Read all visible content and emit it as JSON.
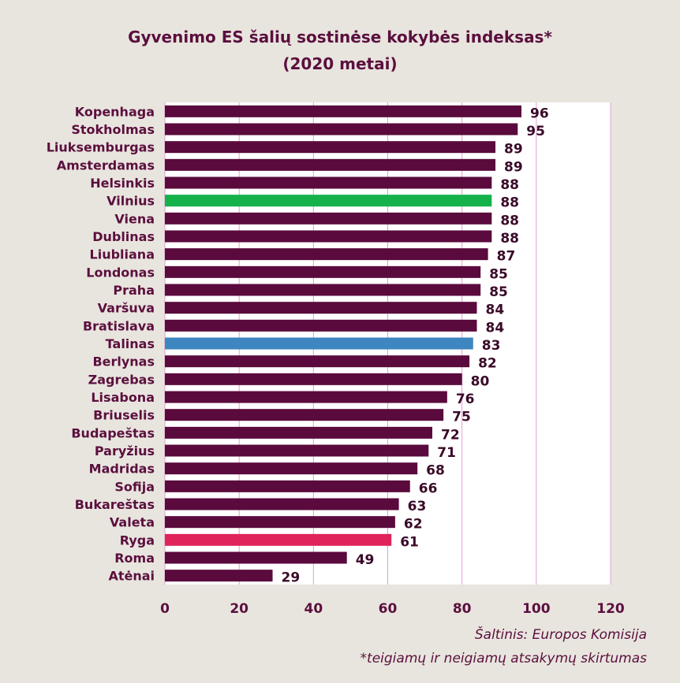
{
  "chart_data": {
    "type": "bar",
    "orientation": "horizontal",
    "title": "Gyvenimo ES šalių sostinėse kokybės indeksas*",
    "subtitle": "(2020 metai)",
    "categories": [
      "Kopenhaga",
      "Stokholmas",
      "Liuksemburgas",
      "Amsterdamas",
      "Helsinkis",
      "Vilnius",
      "Viena",
      "Dublinas",
      "Liubliana",
      "Londonas",
      "Praha",
      "Varšuva",
      "Bratislava",
      "Talinas",
      "Berlynas",
      "Zagrebas",
      "Lisabona",
      "Briuselis",
      "Budapeštas",
      "Paryžius",
      "Madridas",
      "Sofija",
      "Bukareštas",
      "Valeta",
      "Ryga",
      "Roma",
      "Atėnai"
    ],
    "values": [
      96,
      95,
      89,
      89,
      88,
      88,
      88,
      88,
      87,
      85,
      85,
      84,
      84,
      83,
      82,
      80,
      76,
      75,
      72,
      71,
      68,
      66,
      63,
      62,
      61,
      49,
      29
    ],
    "highlight": {
      "Vilnius": "#15b24b",
      "Talinas": "#3d86c0",
      "Ryga": "#e0245a"
    },
    "default_color": "#5a0a3c",
    "xlim": [
      0,
      120
    ],
    "xticks": [
      0,
      20,
      40,
      60,
      80,
      100,
      120
    ],
    "grid": true,
    "xlabel": "",
    "ylabel": ""
  },
  "footer": {
    "source": "Šaltinis: Europos Komisija",
    "note": "*teigiamų ir neigiamų atsakymų skirtumas"
  }
}
